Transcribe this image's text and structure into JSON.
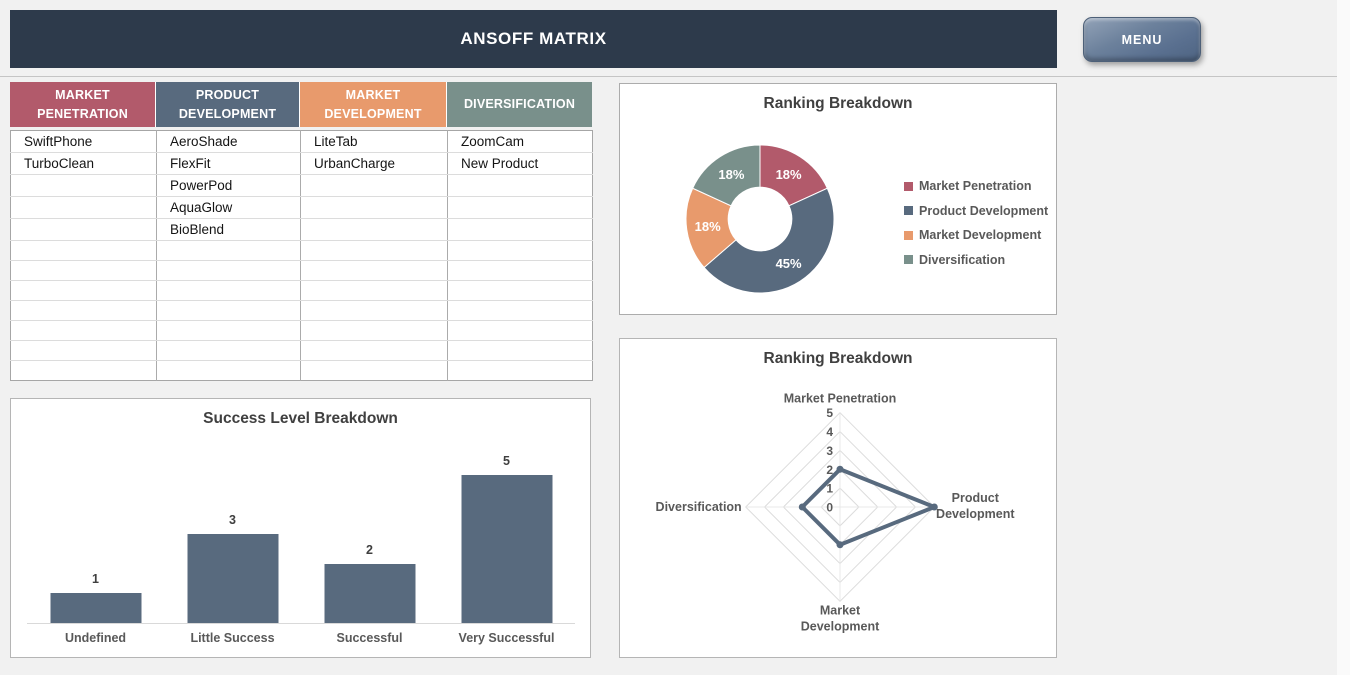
{
  "page": {
    "background": "#F1F1F1",
    "right_strip": "#FAFAFA"
  },
  "header": {
    "title": "ANSOFF MATRIX",
    "bar_color": "#2D3A4B",
    "menu_label": "MENU",
    "menu_color": "#5A7090"
  },
  "table": {
    "columns": [
      {
        "label": "MARKET\nPENETRATION",
        "color": "#B25A6B"
      },
      {
        "label": "PRODUCT\nDEVELOPMENT",
        "color": "#586A7E"
      },
      {
        "label": "MARKET\nDEVELOPMENT",
        "color": "#E89A6C"
      },
      {
        "label": "DIVERSIFICATION",
        "color": "#79908B"
      }
    ],
    "rows": [
      [
        "SwiftPhone",
        "AeroShade",
        "LiteTab",
        "ZoomCam"
      ],
      [
        "TurboClean",
        "FlexFit",
        "UrbanCharge",
        "New Product"
      ],
      [
        "",
        "PowerPod",
        "",
        ""
      ],
      [
        "",
        "AquaGlow",
        "",
        ""
      ],
      [
        "",
        "BioBlend",
        "",
        ""
      ],
      [
        "",
        "",
        "",
        ""
      ],
      [
        "",
        "",
        "",
        ""
      ],
      [
        "",
        "",
        "",
        ""
      ],
      [
        "",
        "",
        "",
        ""
      ],
      [
        "",
        "",
        "",
        ""
      ],
      [
        "",
        "",
        "",
        ""
      ],
      [
        "",
        "",
        "",
        ""
      ]
    ]
  },
  "chart_data": [
    {
      "type": "pie",
      "subtype": "donut",
      "title": "Ranking Breakdown",
      "categories": [
        "Market Penetration",
        "Product Development",
        "Market Development",
        "Diversification"
      ],
      "values": [
        2,
        5,
        2,
        2
      ],
      "percent_labels": [
        "18%",
        "45%",
        "18%",
        "18%"
      ],
      "colors": [
        "#B25A6B",
        "#586A7E",
        "#E89A6C",
        "#79908B"
      ],
      "start_angle_deg": 0,
      "direction": "clockwise",
      "inner_radius_ratio": 0.43,
      "legend_position": "right",
      "label_color": "#FFFFFF"
    },
    {
      "type": "bar",
      "title": "Success Level Breakdown",
      "categories": [
        "Undefined",
        "Little Success",
        "Successful",
        "Very Successful"
      ],
      "values": [
        1,
        3,
        2,
        5
      ],
      "bar_color": "#586A7E",
      "ylim": [
        0,
        5
      ],
      "data_labels": [
        "1",
        "3",
        "2",
        "5"
      ],
      "grid": false,
      "axis_hidden": true
    },
    {
      "type": "radar",
      "title": "Ranking Breakdown",
      "categories": [
        "Market Penetration",
        "Product Development",
        "Market Development",
        "Diversification"
      ],
      "values": [
        2,
        5,
        2,
        2
      ],
      "ticks": [
        "5",
        "4",
        "3",
        "2",
        "1",
        "0"
      ],
      "rlim": [
        0,
        5
      ],
      "line_color": "#586A7E",
      "grid_color": "#DCDCDC",
      "spoke_color": "#E8E8E8",
      "tick_color": "#595959",
      "label_color": "#595959"
    }
  ]
}
